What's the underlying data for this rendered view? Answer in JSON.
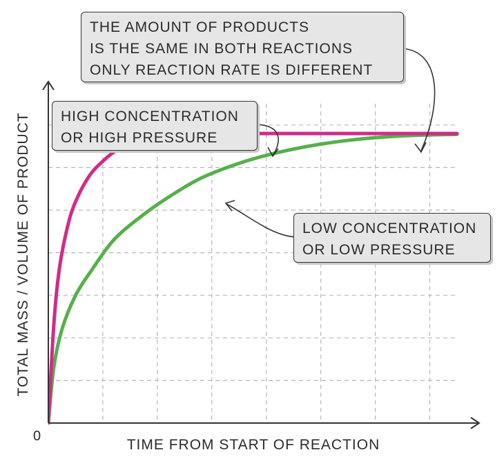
{
  "chart_data": {
    "type": "line",
    "title": "",
    "xlabel": "TIME FROM START OF REACTION",
    "ylabel": "TOTAL MASS / VOLUME OF PRODUCT",
    "origin_label": "0",
    "xlim": [
      0,
      7.5
    ],
    "ylim": [
      0,
      7.5
    ],
    "grid": true,
    "series": [
      {
        "name": "HIGH CONCENTRATION OR HIGH PRESSURE",
        "color": "#d12b8a",
        "x": [
          0,
          0.1,
          0.2,
          0.35,
          0.5,
          0.75,
          1.0,
          1.3,
          1.6,
          2.0,
          2.4,
          2.9,
          3.5,
          4.5,
          5.5,
          6.5,
          7.5
        ],
        "y": [
          0,
          2.3,
          3.6,
          4.6,
          5.2,
          5.8,
          6.15,
          6.45,
          6.6,
          6.73,
          6.78,
          6.8,
          6.8,
          6.8,
          6.8,
          6.8,
          6.8
        ]
      },
      {
        "name": "LOW CONCENTRATION OR LOW PRESSURE",
        "color": "#55b04a",
        "x": [
          0,
          0.1,
          0.25,
          0.5,
          0.8,
          1.2,
          1.7,
          2.2,
          2.8,
          3.5,
          4.2,
          5.0,
          5.8,
          6.6,
          7.5
        ],
        "y": [
          0,
          1.3,
          2.2,
          3.0,
          3.6,
          4.3,
          4.85,
          5.3,
          5.75,
          6.1,
          6.35,
          6.55,
          6.68,
          6.75,
          6.78
        ]
      }
    ]
  },
  "callouts": {
    "amount": {
      "lines": [
        "THE AMOUNT OF PRODUCTS",
        "IS THE SAME IN BOTH REACTIONS",
        "ONLY REACTION RATE IS DIFFERENT"
      ]
    },
    "high": {
      "lines": [
        "HIGH CONCENTRATION",
        "OR HIGH PRESSURE"
      ]
    },
    "low": {
      "lines": [
        "LOW CONCENTRATION",
        "OR LOW PRESSURE"
      ]
    }
  },
  "colors": {
    "grid": "#b8b8b8",
    "axis": "#333333",
    "pink": "#d12b8a",
    "green": "#55b04a",
    "callout_bg": "#e6e6e6"
  }
}
